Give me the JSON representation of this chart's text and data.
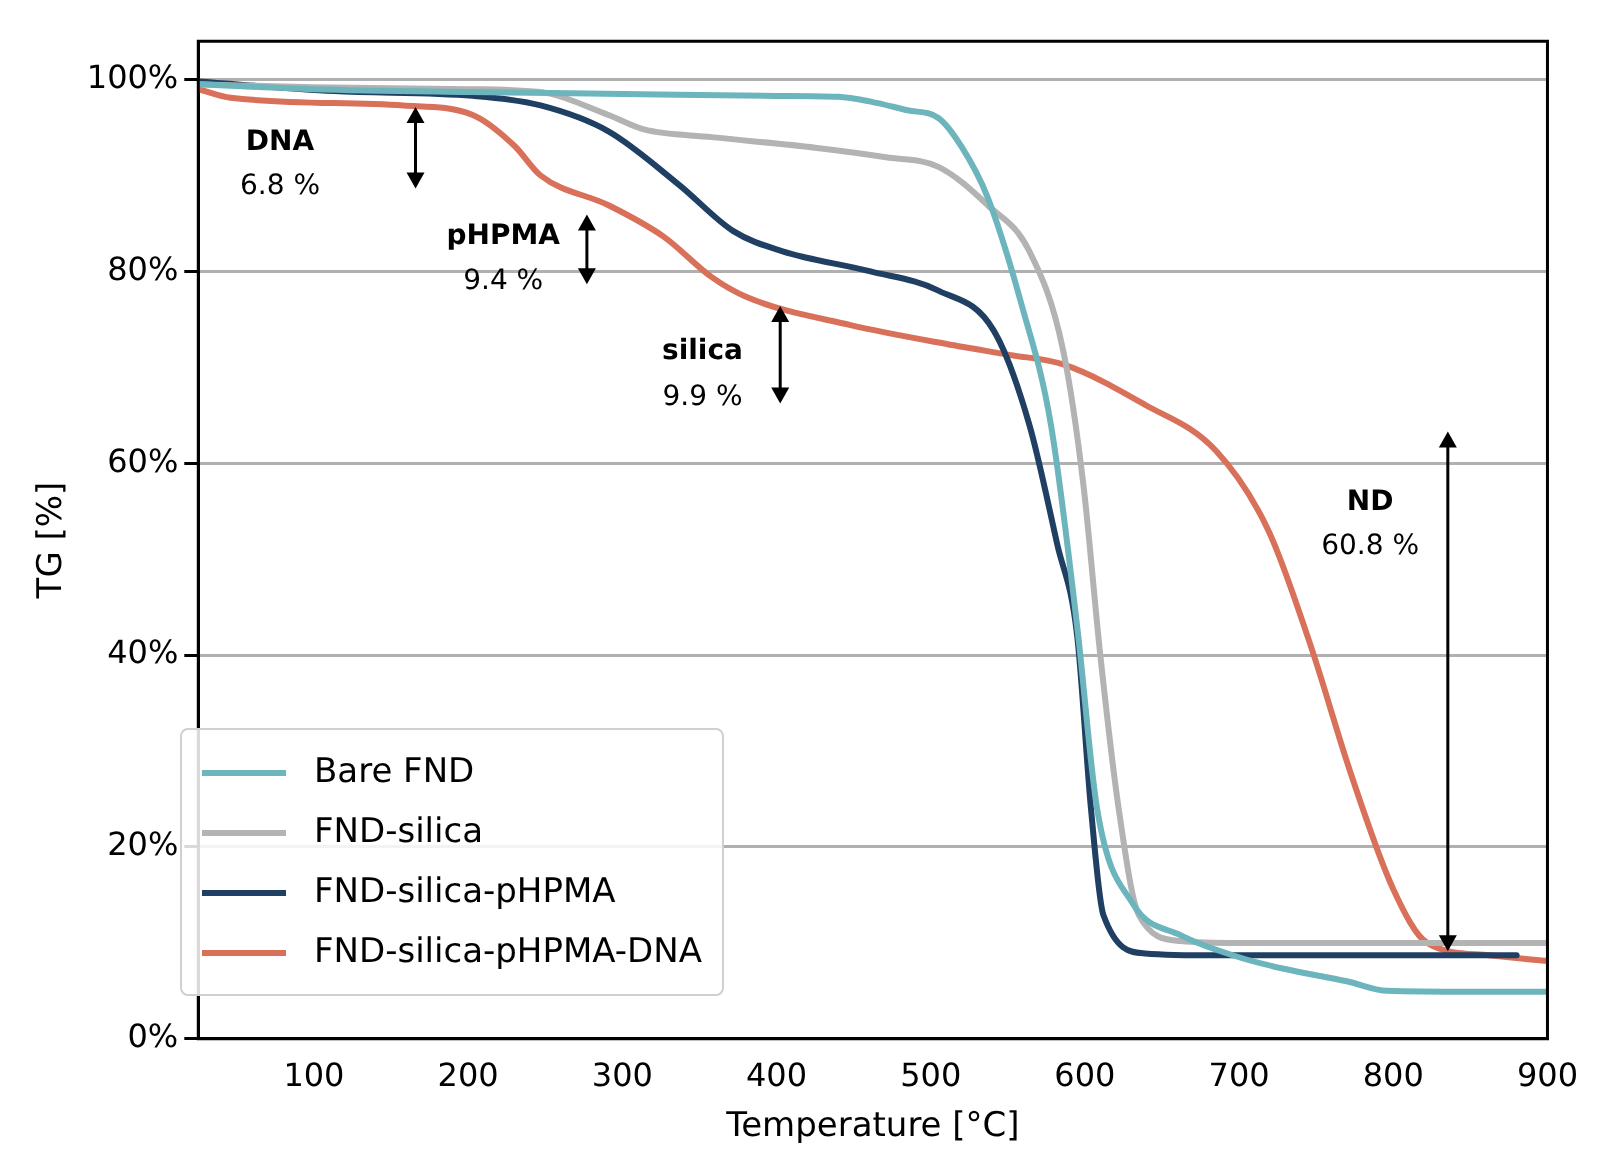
{
  "chart_data": {
    "type": "line",
    "xlabel": "Temperature [°C]",
    "ylabel": "TG [%]",
    "xlim": [
      25,
      900
    ],
    "xticks": [
      100,
      200,
      300,
      400,
      500,
      600,
      700,
      800,
      900
    ],
    "ylim": [
      0,
      104
    ],
    "yticks": [
      {
        "value": 0,
        "label": "0%"
      },
      {
        "value": 20,
        "label": "20%"
      },
      {
        "value": 40,
        "label": "40%"
      },
      {
        "value": 60,
        "label": "60%"
      },
      {
        "value": 80,
        "label": "80%"
      },
      {
        "value": 100,
        "label": "100%"
      }
    ],
    "grid": "y",
    "legend": "bottom left",
    "marker": "none",
    "line_style": "solid",
    "series": [
      {
        "name": "Bare FND",
        "color": "#6db5bd",
        "x": [
          25,
          100,
          200,
          300,
          400,
          440,
          461,
          485,
          505,
          520,
          537,
          559,
          578,
          595,
          608,
          631,
          662,
          700,
          729,
          770,
          796,
          850,
          900
        ],
        "values": [
          99.5,
          99,
          98.7,
          98.5,
          98.3,
          98.2,
          97.7,
          96.8,
          96,
          93,
          87.7,
          76.5,
          64,
          43,
          23.9,
          14.1,
          10.8,
          8.5,
          7.3,
          6,
          5,
          4.9,
          4.9
        ]
      },
      {
        "name": "FND-silica",
        "color": "#b3b3b3",
        "x": [
          25,
          100,
          200,
          247,
          291,
          314,
          358,
          425,
          471,
          505,
          537,
          564,
          586,
          599,
          610,
          622,
          635,
          662,
          700,
          900
        ],
        "values": [
          99.5,
          99.2,
          99,
          98.7,
          96.3,
          94.8,
          94,
          92.9,
          91.9,
          90.9,
          86.9,
          82.1,
          71.7,
          57.8,
          40,
          23.9,
          12.9,
          10.2,
          10,
          10
        ]
      },
      {
        "name": "FND-silica-pHPMA",
        "color": "#1f3f63",
        "x": [
          25,
          113,
          203,
          247,
          291,
          337,
          372,
          404,
          461,
          505,
          541,
          564,
          582,
          595,
          604,
          612,
          639,
          685,
          880
        ],
        "values": [
          99.8,
          98.8,
          98.3,
          97.3,
          94.6,
          89,
          84.2,
          82.1,
          80,
          78,
          73.8,
          64,
          51.6,
          42,
          23.9,
          12.9,
          8.9,
          8.7,
          8.7
        ]
      },
      {
        "name": "FND-silica-pHPMA-DNA",
        "color": "#d9705a",
        "x": [
          25,
          46,
          158,
          203,
          230,
          247,
          291,
          327,
          358,
          381,
          448,
          515,
          551,
          586,
          639,
          685,
          719,
          746,
          773,
          800,
          822,
          862,
          900
        ],
        "values": [
          99,
          98.1,
          97.3,
          96.3,
          93.1,
          90,
          86.9,
          83.6,
          79.4,
          77.3,
          74.4,
          72.3,
          71.3,
          70.3,
          66.1,
          61.3,
          53,
          41.2,
          27.4,
          15.6,
          10,
          8.7,
          8.1
        ]
      }
    ],
    "annotations": [
      "DNA\n6.8 %",
      "pHPMA\n9.4 %",
      "silica\n9.9 %",
      "ND\n60.8 %"
    ]
  }
}
